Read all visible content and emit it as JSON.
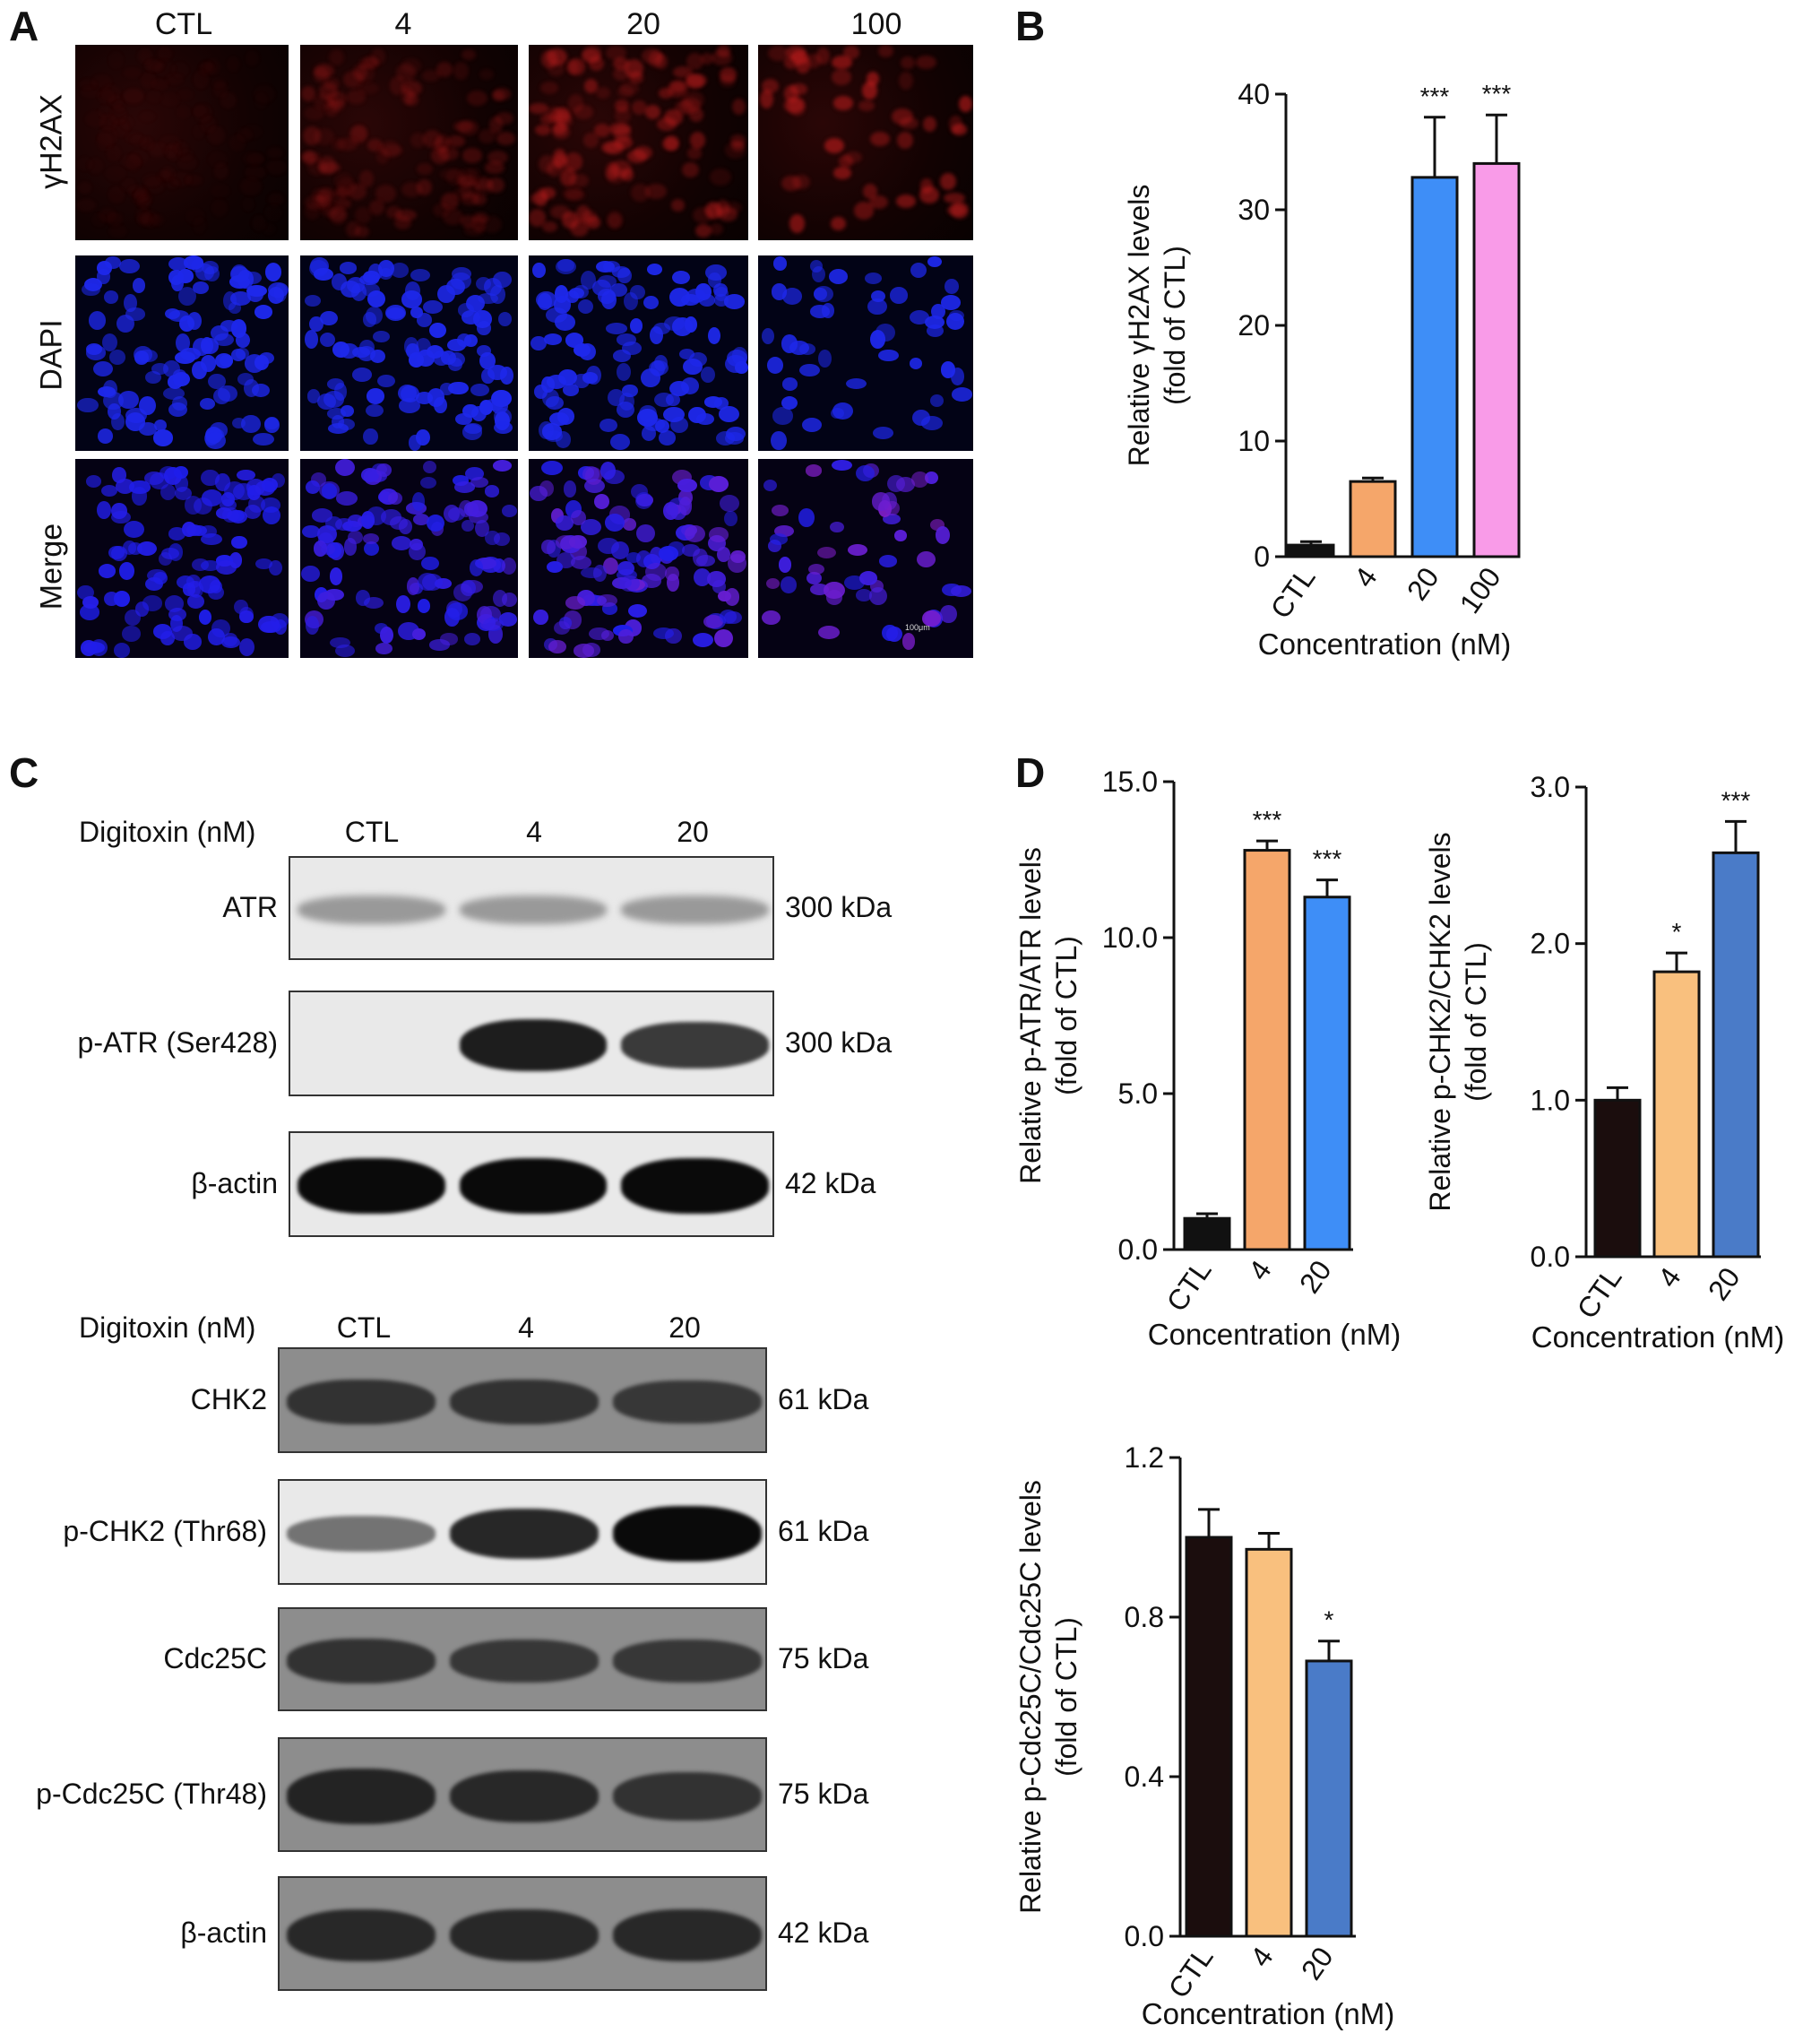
{
  "panel_labels": [
    "A",
    "B",
    "C",
    "D"
  ],
  "panelA": {
    "columns": [
      "CTL",
      "4",
      "20",
      "100"
    ],
    "rows": [
      "γH2AX",
      "DAPI",
      "Merge"
    ],
    "scale_bar": "100μm"
  },
  "blot_upper": {
    "header": "Digitoxin (nM)",
    "lanes": [
      "CTL",
      "4",
      "20"
    ],
    "rows": [
      {
        "label": "ATR",
        "kda": "300 kDa",
        "intensity": [
          0.25,
          0.25,
          0.25
        ],
        "bg": "light"
      },
      {
        "label": "p-ATR (Ser428)",
        "kda": "300 kDa",
        "intensity": [
          0.0,
          0.9,
          0.75
        ],
        "bg": "light"
      },
      {
        "label": "β-actin",
        "kda": "42 kDa",
        "intensity": [
          1.0,
          1.0,
          1.0
        ],
        "bg": "light"
      }
    ]
  },
  "blot_lower": {
    "header": "Digitoxin (nM)",
    "lanes": [
      "CTL",
      "4",
      "20"
    ],
    "rows": [
      {
        "label": "CHK2",
        "kda": "61 kDa",
        "intensity": [
          0.7,
          0.7,
          0.65
        ],
        "bg": "dark"
      },
      {
        "label": "p-CHK2 (Thr68)",
        "kda": "61 kDa",
        "intensity": [
          0.45,
          0.85,
          1.0
        ],
        "bg": "light"
      },
      {
        "label": "Cdc25C",
        "kda": "75 kDa",
        "intensity": [
          0.7,
          0.65,
          0.65
        ],
        "bg": "dark"
      },
      {
        "label": "p-Cdc25C (Thr48)",
        "kda": "75 kDa",
        "intensity": [
          0.85,
          0.8,
          0.7
        ],
        "bg": "dark"
      },
      {
        "label": "β-actin",
        "kda": "42 kDa",
        "intensity": [
          0.8,
          0.8,
          0.8
        ],
        "bg": "dark"
      }
    ]
  },
  "chart_data": [
    {
      "id": "B",
      "type": "bar",
      "categories": [
        "CTL",
        "4",
        "20",
        "100"
      ],
      "values": [
        1.0,
        6.5,
        32.8,
        34.0
      ],
      "errors": [
        0.3,
        0.3,
        5.2,
        4.2
      ],
      "significance": [
        "",
        "",
        "***",
        "***"
      ],
      "colors": [
        "#111111",
        "#f5a66a",
        "#3e8ef7",
        "#f99be8"
      ],
      "ylabel": [
        "Relative γH2AX levels",
        "(fold of CTL)"
      ],
      "xlabel": "Concentration (nM)",
      "ylim": [
        0,
        40
      ],
      "yticks": [
        "0",
        "10",
        "20",
        "30",
        "40"
      ],
      "ytick_values": [
        0,
        10,
        20,
        30,
        40
      ]
    },
    {
      "id": "D1",
      "type": "bar",
      "categories": [
        "CTL",
        "4",
        "20"
      ],
      "values": [
        1.0,
        12.8,
        11.3
      ],
      "errors": [
        0.15,
        0.3,
        0.55
      ],
      "significance": [
        "",
        "***",
        "***"
      ],
      "colors": [
        "#111111",
        "#f5a66a",
        "#3e8ef7"
      ],
      "ylabel": [
        "Relative p-ATR/ATR levels",
        "(fold of CTL)"
      ],
      "xlabel": "Concentration (nM)",
      "ylim": [
        0,
        15
      ],
      "yticks": [
        "0.0",
        "5.0",
        "10.0",
        "15.0"
      ],
      "ytick_values": [
        0,
        5,
        10,
        15
      ]
    },
    {
      "id": "D2",
      "type": "bar",
      "categories": [
        "CTL",
        "4",
        "20"
      ],
      "values": [
        1.0,
        1.82,
        2.58
      ],
      "errors": [
        0.08,
        0.12,
        0.2
      ],
      "significance": [
        "",
        "*",
        "***"
      ],
      "colors": [
        "#1b0d0d",
        "#f9c07e",
        "#4a7bc8"
      ],
      "ylabel": [
        "Relative p-CHK2/CHK2 levels",
        "(fold of CTL)"
      ],
      "xlabel": "Concentration (nM)",
      "ylim": [
        0,
        3
      ],
      "yticks": [
        "0.0",
        "1.0",
        "2.0",
        "3.0"
      ],
      "ytick_values": [
        0,
        1,
        2,
        3
      ]
    },
    {
      "id": "D3",
      "type": "bar",
      "categories": [
        "CTL",
        "4",
        "20"
      ],
      "values": [
        1.0,
        0.97,
        0.69
      ],
      "errors": [
        0.07,
        0.04,
        0.05
      ],
      "significance": [
        "",
        "",
        "*"
      ],
      "colors": [
        "#1b0d0d",
        "#f9c07e",
        "#4a7bc8"
      ],
      "ylabel": [
        "Relative p-Cdc25C/Cdc25C levels",
        "(fold of CTL)"
      ],
      "xlabel": "Concentration (nM)",
      "ylim": [
        0,
        1.2
      ],
      "yticks": [
        "0.0",
        "0.4",
        "0.8",
        "1.2"
      ],
      "ytick_values": [
        0,
        0.4,
        0.8,
        1.2
      ]
    }
  ]
}
